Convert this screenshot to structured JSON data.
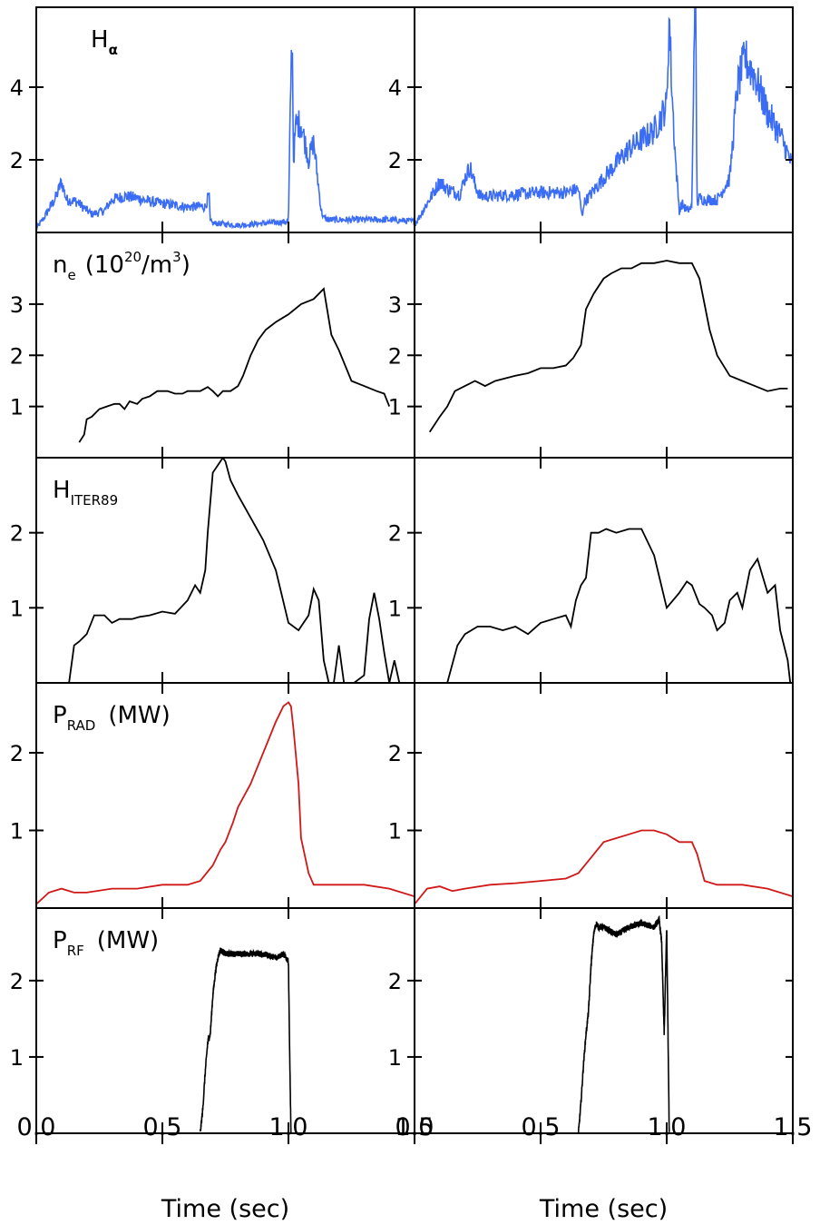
{
  "chart_data": {
    "type": "line",
    "layout": "5 rows x 2 columns of stacked time-series panels sharing a time axis",
    "x_axis": {
      "label": "Time (sec)",
      "range": [
        0.0,
        1.5
      ],
      "ticks": [
        0.0,
        0.5,
        1.0,
        1.5
      ],
      "tick_labels_left": [
        "0.0",
        "0.5",
        "1.0",
        "1.5"
      ],
      "tick_labels_right": [
        "0.0",
        "0.5",
        "1.0",
        "1.5"
      ]
    },
    "rows": [
      {
        "id": "halpha",
        "label_main": "H",
        "label_sub": "α",
        "label_sup": "",
        "label_tail": "",
        "ylim": [
          0,
          6.2
        ],
        "yticks": [
          2,
          4
        ],
        "ytick_labels": [
          "2",
          "4"
        ],
        "color": "#3b6cf5",
        "noisy": true,
        "left": {
          "x": [
            0.0,
            0.03,
            0.08,
            0.1,
            0.12,
            0.16,
            0.22,
            0.27,
            0.3,
            0.35,
            0.4,
            0.45,
            0.5,
            0.55,
            0.6,
            0.65,
            0.67,
            0.685,
            0.69,
            0.7,
            0.72,
            0.8,
            0.9,
            1.0,
            1.01,
            1.015,
            1.02,
            1.03,
            1.05,
            1.08,
            1.1,
            1.12,
            1.13,
            1.14,
            1.16,
            1.2,
            1.3,
            1.4,
            1.5
          ],
          "y": [
            0.1,
            0.4,
            1.0,
            1.4,
            0.9,
            0.85,
            0.5,
            0.6,
            0.9,
            1.0,
            0.95,
            0.85,
            0.8,
            0.75,
            0.7,
            0.72,
            0.7,
            1.05,
            0.3,
            0.25,
            0.25,
            0.2,
            0.25,
            0.3,
            4.5,
            5.3,
            2.0,
            3.0,
            3.0,
            2.0,
            2.5,
            1.2,
            0.6,
            0.4,
            0.35,
            0.35,
            0.35,
            0.35,
            0.3
          ]
        },
        "right": {
          "x": [
            0.0,
            0.05,
            0.1,
            0.13,
            0.18,
            0.2,
            0.22,
            0.24,
            0.26,
            0.3,
            0.4,
            0.5,
            0.6,
            0.65,
            0.665,
            0.67,
            0.75,
            0.85,
            0.95,
            1.0,
            1.01,
            1.02,
            1.035,
            1.05,
            1.06,
            1.08,
            1.1,
            1.11,
            1.115,
            1.12,
            1.13,
            1.15,
            1.2,
            1.25,
            1.28,
            1.31,
            1.35,
            1.4,
            1.45,
            1.5
          ],
          "y": [
            0.2,
            0.8,
            1.4,
            1.2,
            1.05,
            1.5,
            1.8,
            1.3,
            1.0,
            1.0,
            1.05,
            1.1,
            1.1,
            1.2,
            0.4,
            0.8,
            1.5,
            2.3,
            2.8,
            3.5,
            6.0,
            4.0,
            2.0,
            0.6,
            0.8,
            0.6,
            0.7,
            6.2,
            6.2,
            0.8,
            0.95,
            0.9,
            0.9,
            1.5,
            4.0,
            4.8,
            4.3,
            3.3,
            2.7,
            1.8
          ]
        }
      },
      {
        "id": "ne",
        "label_main": "n",
        "label_sub": "e",
        "label_sup": "20",
        "label_tail_pre": "(10",
        "label_tail": "/m",
        "label_sup2": "3",
        "label_close": ")",
        "ylim": [
          0,
          4.4
        ],
        "yticks": [
          1,
          2,
          3
        ],
        "ytick_labels": [
          "1",
          "2",
          "3"
        ],
        "color": "#000000",
        "noisy": false,
        "left": {
          "x": [
            0.17,
            0.19,
            0.2,
            0.22,
            0.25,
            0.28,
            0.31,
            0.33,
            0.35,
            0.37,
            0.4,
            0.42,
            0.45,
            0.48,
            0.5,
            0.52,
            0.55,
            0.58,
            0.6,
            0.62,
            0.65,
            0.68,
            0.7,
            0.72,
            0.74,
            0.77,
            0.8,
            0.82,
            0.85,
            0.88,
            0.91,
            0.95,
            1.0,
            1.05,
            1.1,
            1.14,
            1.17,
            1.2,
            1.25,
            1.3,
            1.35,
            1.38,
            1.4
          ],
          "y": [
            0.3,
            0.45,
            0.75,
            0.8,
            0.95,
            1.0,
            1.05,
            1.05,
            0.95,
            1.1,
            1.05,
            1.15,
            1.2,
            1.3,
            1.3,
            1.3,
            1.25,
            1.25,
            1.3,
            1.3,
            1.3,
            1.38,
            1.3,
            1.2,
            1.3,
            1.3,
            1.4,
            1.6,
            2.0,
            2.3,
            2.5,
            2.65,
            2.8,
            3.0,
            3.1,
            3.3,
            2.4,
            2.1,
            1.5,
            1.4,
            1.3,
            1.25,
            1.0
          ]
        },
        "right": {
          "x": [
            0.06,
            0.1,
            0.13,
            0.16,
            0.2,
            0.24,
            0.28,
            0.32,
            0.36,
            0.4,
            0.45,
            0.5,
            0.55,
            0.6,
            0.63,
            0.66,
            0.68,
            0.71,
            0.75,
            0.78,
            0.82,
            0.86,
            0.9,
            0.95,
            1.0,
            1.05,
            1.1,
            1.13,
            1.17,
            1.2,
            1.25,
            1.3,
            1.35,
            1.4,
            1.45,
            1.48
          ],
          "y": [
            0.5,
            0.8,
            1.0,
            1.3,
            1.4,
            1.5,
            1.4,
            1.5,
            1.55,
            1.6,
            1.65,
            1.75,
            1.75,
            1.8,
            1.95,
            2.2,
            2.9,
            3.2,
            3.5,
            3.6,
            3.7,
            3.7,
            3.8,
            3.8,
            3.85,
            3.8,
            3.8,
            3.5,
            2.5,
            2.0,
            1.6,
            1.5,
            1.4,
            1.3,
            1.35,
            1.35
          ]
        }
      },
      {
        "id": "hiter",
        "label_main": "H",
        "label_sub": "ITER89",
        "label_sup": "",
        "label_tail": "",
        "ylim": [
          0,
          3.0
        ],
        "yticks": [
          1,
          2
        ],
        "ytick_labels": [
          "1",
          "2"
        ],
        "color": "#000000",
        "noisy": false,
        "left": {
          "x": [
            0.13,
            0.15,
            0.17,
            0.2,
            0.23,
            0.27,
            0.3,
            0.33,
            0.35,
            0.38,
            0.41,
            0.45,
            0.5,
            0.55,
            0.6,
            0.63,
            0.65,
            0.67,
            0.68,
            0.7,
            0.72,
            0.74,
            0.75,
            0.77,
            0.8,
            0.85,
            0.9,
            0.95,
            1.0,
            1.04,
            1.08,
            1.1,
            1.12,
            1.14,
            1.16,
            1.18,
            1.2,
            1.22,
            1.26,
            1.3,
            1.32,
            1.34,
            1.36,
            1.38,
            1.4,
            1.42,
            1.44
          ],
          "y": [
            0.0,
            0.5,
            0.55,
            0.65,
            0.9,
            0.9,
            0.8,
            0.85,
            0.85,
            0.85,
            0.88,
            0.9,
            0.95,
            0.92,
            1.1,
            1.3,
            1.2,
            1.5,
            2.0,
            2.8,
            2.9,
            3.0,
            2.95,
            2.7,
            2.5,
            2.2,
            1.9,
            1.5,
            0.8,
            0.7,
            0.9,
            1.25,
            1.1,
            0.3,
            0.0,
            0.0,
            0.5,
            0.0,
            0.0,
            0.1,
            0.85,
            1.2,
            0.85,
            0.4,
            0.0,
            0.3,
            0.0
          ]
        },
        "right": {
          "x": [
            0.13,
            0.17,
            0.2,
            0.25,
            0.3,
            0.35,
            0.4,
            0.45,
            0.5,
            0.55,
            0.6,
            0.62,
            0.64,
            0.66,
            0.68,
            0.7,
            0.73,
            0.76,
            0.8,
            0.85,
            0.9,
            0.95,
            1.0,
            1.05,
            1.08,
            1.1,
            1.13,
            1.15,
            1.18,
            1.2,
            1.23,
            1.25,
            1.28,
            1.3,
            1.33,
            1.36,
            1.4,
            1.43,
            1.45,
            1.48,
            1.49,
            1.5
          ],
          "y": [
            0.0,
            0.5,
            0.65,
            0.75,
            0.75,
            0.7,
            0.75,
            0.65,
            0.8,
            0.85,
            0.9,
            0.75,
            1.1,
            1.3,
            1.4,
            2.0,
            2.0,
            2.05,
            2.0,
            2.05,
            2.05,
            1.7,
            1.0,
            1.2,
            1.35,
            1.3,
            1.05,
            1.0,
            0.9,
            0.7,
            0.8,
            1.1,
            1.2,
            1.0,
            1.5,
            1.65,
            1.2,
            1.3,
            0.7,
            0.3,
            0.0,
            0.0
          ]
        }
      },
      {
        "id": "prad",
        "label_main": "P",
        "label_sub": "RAD",
        "label_sup": "",
        "label_tail": "(MW)",
        "ylim": [
          0,
          2.9
        ],
        "yticks": [
          1,
          2
        ],
        "ytick_labels": [
          "1",
          "2"
        ],
        "color": "#d01818",
        "noisy": false,
        "left": {
          "x": [
            0.0,
            0.05,
            0.1,
            0.15,
            0.2,
            0.3,
            0.4,
            0.5,
            0.6,
            0.65,
            0.7,
            0.73,
            0.75,
            0.78,
            0.8,
            0.85,
            0.9,
            0.95,
            0.98,
            1.0,
            1.01,
            1.02,
            1.04,
            1.05,
            1.08,
            1.1,
            1.2,
            1.3,
            1.4,
            1.5
          ],
          "y": [
            0.05,
            0.2,
            0.25,
            0.2,
            0.2,
            0.25,
            0.25,
            0.3,
            0.3,
            0.35,
            0.55,
            0.75,
            0.85,
            1.1,
            1.3,
            1.6,
            2.0,
            2.4,
            2.6,
            2.65,
            2.6,
            2.3,
            1.6,
            0.9,
            0.45,
            0.3,
            0.3,
            0.3,
            0.25,
            0.15
          ]
        },
        "right": {
          "x": [
            0.0,
            0.05,
            0.1,
            0.15,
            0.2,
            0.3,
            0.4,
            0.5,
            0.6,
            0.65,
            0.7,
            0.75,
            0.8,
            0.85,
            0.9,
            0.95,
            1.0,
            1.05,
            1.1,
            1.12,
            1.15,
            1.2,
            1.3,
            1.4,
            1.5
          ],
          "y": [
            0.05,
            0.25,
            0.28,
            0.22,
            0.25,
            0.3,
            0.32,
            0.35,
            0.38,
            0.45,
            0.65,
            0.85,
            0.9,
            0.95,
            1.0,
            1.0,
            0.95,
            0.85,
            0.85,
            0.7,
            0.35,
            0.3,
            0.3,
            0.25,
            0.15
          ]
        }
      },
      {
        "id": "prf",
        "label_main": "P",
        "label_sub": "RF",
        "label_sup": "",
        "label_tail": "(MW)",
        "ylim": [
          0,
          2.95
        ],
        "yticks": [
          1,
          2
        ],
        "ytick_labels": [
          "1",
          "2"
        ],
        "color": "#000000",
        "noisy": true,
        "left": {
          "x": [
            0.65,
            0.66,
            0.67,
            0.68,
            0.69,
            0.7,
            0.71,
            0.72,
            0.73,
            0.75,
            0.8,
            0.85,
            0.9,
            0.95,
            0.98,
            0.99,
            1.0,
            1.005,
            1.01
          ],
          "y": [
            0.0,
            0.3,
            0.8,
            1.2,
            1.3,
            1.8,
            2.1,
            2.3,
            2.4,
            2.35,
            2.35,
            2.35,
            2.35,
            2.3,
            2.35,
            2.3,
            2.25,
            1.0,
            0.0
          ]
        },
        "right": {
          "x": [
            0.65,
            0.66,
            0.67,
            0.68,
            0.69,
            0.7,
            0.71,
            0.72,
            0.73,
            0.75,
            0.8,
            0.85,
            0.9,
            0.95,
            0.97,
            0.98,
            0.99,
            1.0,
            1.01
          ],
          "y": [
            0.0,
            0.4,
            0.9,
            1.3,
            1.6,
            2.2,
            2.6,
            2.75,
            2.7,
            2.7,
            2.6,
            2.7,
            2.75,
            2.7,
            2.8,
            2.5,
            1.3,
            2.7,
            0.0
          ]
        }
      }
    ]
  }
}
